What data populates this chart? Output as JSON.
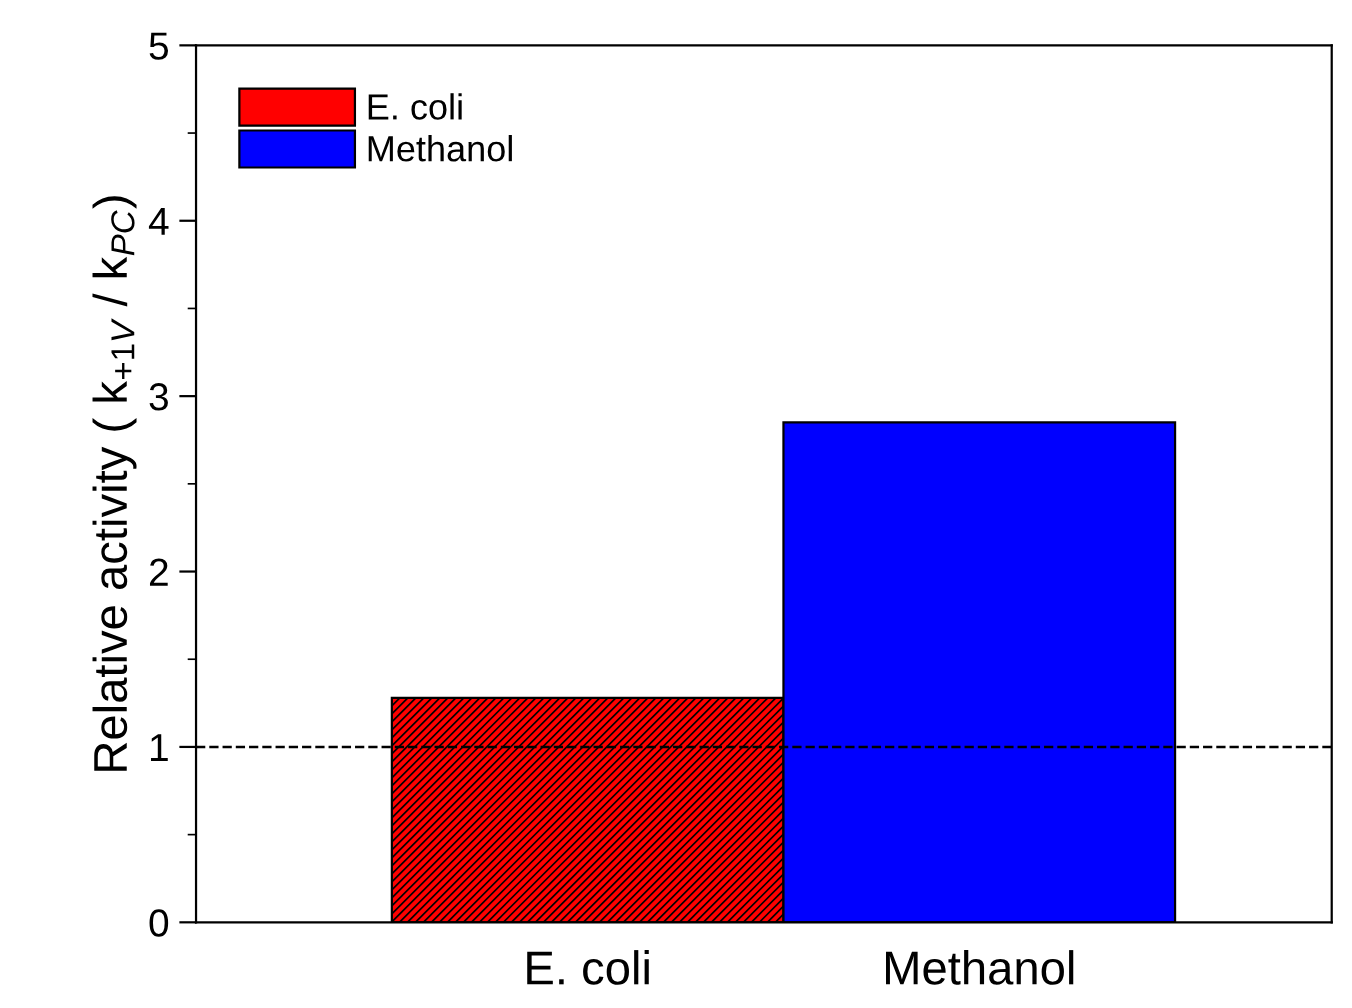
{
  "chart_data": {
    "type": "bar",
    "ylabel": "Relative activity ( k$_{+1V}$ / k$_{PC}$)",
    "categories": [
      "E. coli",
      "Methanol"
    ],
    "series": [
      {
        "name": "E. coli",
        "color": "#ff0000",
        "values": [
          1.28,
          null
        ]
      },
      {
        "name": "Methanol",
        "color": "#0000ff",
        "values": [
          null,
          2.85
        ]
      }
    ],
    "ylim": [
      0,
      5
    ],
    "yticks": [
      0,
      1,
      2,
      3,
      4,
      5
    ],
    "ref_lines": [
      {
        "axis": "y",
        "value": 1,
        "color": "#000000",
        "line_style": "dashed"
      }
    ],
    "legend": "top left",
    "grid": false
  }
}
